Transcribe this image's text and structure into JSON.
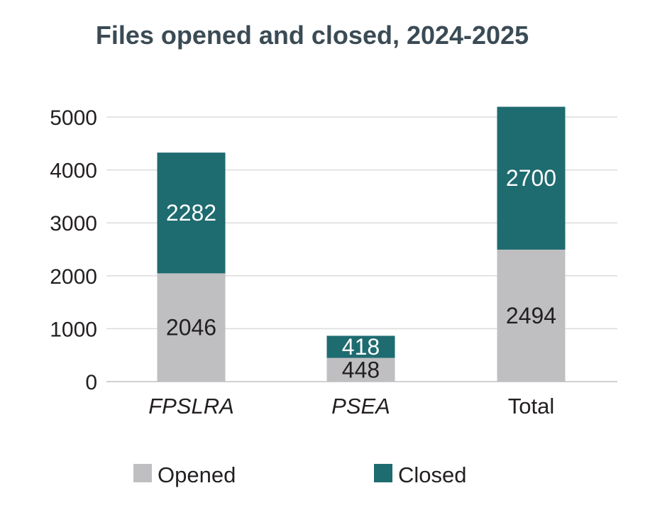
{
  "chart_data": {
    "type": "bar",
    "stacked": true,
    "title": "Files opened and closed, 2024-2025",
    "xlabel": "",
    "ylabel": "",
    "categories": [
      "FPSLRA",
      "PSEA",
      "Total"
    ],
    "category_italic": [
      true,
      true,
      false
    ],
    "series": [
      {
        "name": "Opened",
        "values": [
          2046,
          448,
          2494
        ],
        "color": "#bfbfc1",
        "label_color": "#231f20"
      },
      {
        "name": "Closed",
        "values": [
          2282,
          418,
          2700
        ],
        "color": "#1e6b70",
        "label_color": "#ffffff"
      }
    ],
    "ylim": [
      0,
      5000
    ],
    "yticks": [
      0,
      1000,
      2000,
      3000,
      4000,
      5000
    ],
    "grid": true,
    "legend_position": "bottom",
    "title_color": "#3b4b55"
  }
}
